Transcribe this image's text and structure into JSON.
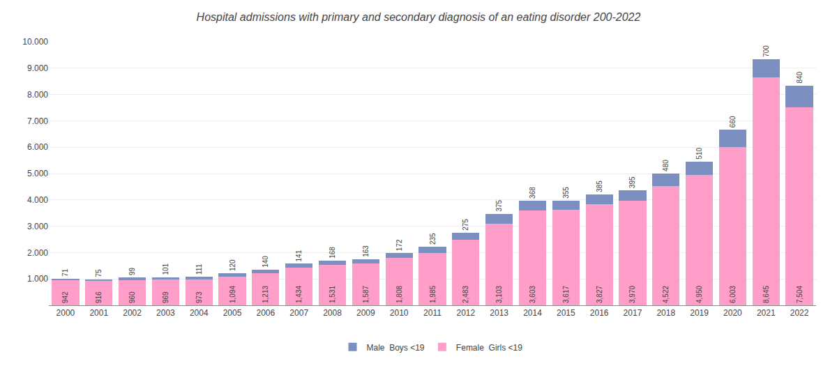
{
  "chart_data": {
    "type": "bar",
    "stacked": true,
    "title": "Hospital admissions with primary and secondary diagnosis of an eating disorder 200-2022",
    "categories": [
      2000,
      2001,
      2002,
      2003,
      2004,
      2005,
      2006,
      2007,
      2008,
      2009,
      2010,
      2011,
      2012,
      2013,
      2014,
      2015,
      2016,
      2017,
      2018,
      2019,
      2020,
      2021,
      2022
    ],
    "series": [
      {
        "name": "Female  Girls <19",
        "color": "#FF9EC8",
        "values": [
          942,
          916,
          960,
          969,
          973,
          1094,
          1213,
          1434,
          1531,
          1587,
          1808,
          1985,
          2483,
          3103,
          3603,
          3617,
          3827,
          3970,
          4522,
          4950,
          6003,
          8645,
          7504
        ],
        "value_labels": [
          "942",
          "916",
          "960",
          "969",
          "973",
          "1,094",
          "1,213",
          "1,434",
          "1,531",
          "1,587",
          "1,808",
          "1,985",
          "2,483",
          "3,103",
          "3,603",
          "3,617",
          "3,827",
          "3,970",
          "4,522",
          "4,950",
          "6,003",
          "8,645",
          "7,504"
        ]
      },
      {
        "name": "Male  Boys <19",
        "color": "#7B8FC0",
        "values": [
          71,
          75,
          99,
          101,
          111,
          120,
          140,
          141,
          168,
          163,
          172,
          235,
          275,
          375,
          368,
          355,
          385,
          395,
          480,
          510,
          660,
          700,
          840
        ]
      }
    ],
    "ylim": [
      0,
      10000
    ],
    "yticks": [
      {
        "value": 1000,
        "label": "1.000"
      },
      {
        "value": 2000,
        "label": "2.000"
      },
      {
        "value": 3000,
        "label": "3.000"
      },
      {
        "value": 4000,
        "label": "4.000"
      },
      {
        "value": 5000,
        "label": "5.000"
      },
      {
        "value": 6000,
        "label": "6.000"
      },
      {
        "value": 7000,
        "label": "7.000"
      },
      {
        "value": 8000,
        "label": "8.000"
      },
      {
        "value": 9000,
        "label": "9.000"
      },
      {
        "value": 10000,
        "label": "10.000"
      }
    ],
    "grid": true,
    "legend": "bottom",
    "data_labels": true
  }
}
